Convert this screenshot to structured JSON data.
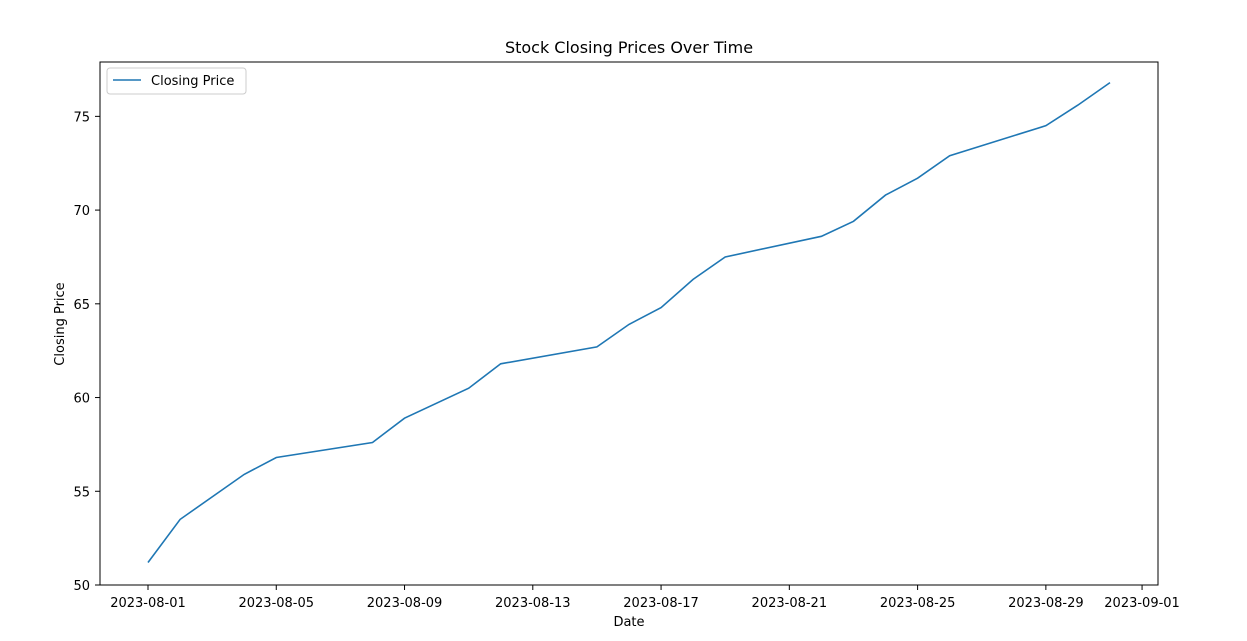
{
  "chart_data": {
    "type": "line",
    "title": "Stock Closing Prices Over Time",
    "xlabel": "Date",
    "ylabel": "Closing Price",
    "x_ticks": [
      "2023-08-01",
      "2023-08-05",
      "2023-08-09",
      "2023-08-13",
      "2023-08-17",
      "2023-08-21",
      "2023-08-25",
      "2023-08-29",
      "2023-09-01"
    ],
    "y_ticks": [
      50,
      55,
      60,
      65,
      70,
      75
    ],
    "xlim": [
      "2023-07-30",
      "2023-09-01"
    ],
    "ylim": [
      50,
      77.9
    ],
    "legend_position": "top-left",
    "grid": false,
    "series": [
      {
        "name": "Closing Price",
        "color": "#1f77b4",
        "points": [
          {
            "x": "2023-08-01",
            "y": 51.2
          },
          {
            "x": "2023-08-02",
            "y": 53.5
          },
          {
            "x": "2023-08-04",
            "y": 55.9
          },
          {
            "x": "2023-08-05",
            "y": 56.8
          },
          {
            "x": "2023-08-08",
            "y": 57.6
          },
          {
            "x": "2023-08-09",
            "y": 58.9
          },
          {
            "x": "2023-08-11",
            "y": 60.5
          },
          {
            "x": "2023-08-12",
            "y": 61.8
          },
          {
            "x": "2023-08-15",
            "y": 62.7
          },
          {
            "x": "2023-08-16",
            "y": 63.9
          },
          {
            "x": "2023-08-17",
            "y": 64.8
          },
          {
            "x": "2023-08-18",
            "y": 66.3
          },
          {
            "x": "2023-08-19",
            "y": 67.5
          },
          {
            "x": "2023-08-22",
            "y": 68.6
          },
          {
            "x": "2023-08-23",
            "y": 69.4
          },
          {
            "x": "2023-08-24",
            "y": 70.8
          },
          {
            "x": "2023-08-25",
            "y": 71.7
          },
          {
            "x": "2023-08-26",
            "y": 72.9
          },
          {
            "x": "2023-08-29",
            "y": 74.5
          },
          {
            "x": "2023-08-30",
            "y": 75.6
          },
          {
            "x": "2023-08-31",
            "y": 76.8
          }
        ]
      }
    ]
  }
}
